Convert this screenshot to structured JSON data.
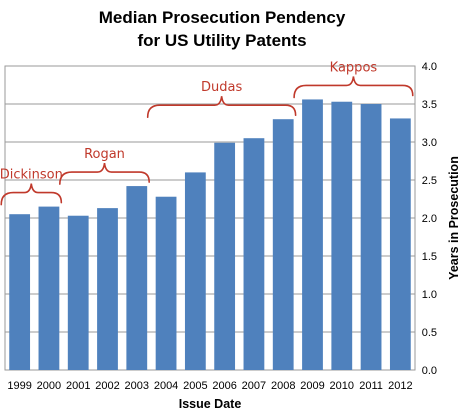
{
  "chart_data": {
    "type": "bar",
    "title_lines": [
      "Median Prosecution Pendency",
      "for US Utility Patents"
    ],
    "xlabel": "Issue Date",
    "ylabel": "Years in Prosecution",
    "categories": [
      "1999",
      "2000",
      "2001",
      "2002",
      "2003",
      "2004",
      "2005",
      "2006",
      "2007",
      "2008",
      "2009",
      "2010",
      "2011",
      "2012"
    ],
    "values": [
      2.05,
      2.15,
      2.03,
      2.13,
      2.42,
      2.28,
      2.6,
      2.99,
      3.05,
      3.3,
      3.56,
      3.53,
      3.5,
      3.31
    ],
    "ylim": [
      0.0,
      4.0
    ],
    "yticks": [
      "0.0",
      "0.5",
      "1.0",
      "1.5",
      "2.0",
      "2.5",
      "3.0",
      "3.5",
      "4.0"
    ],
    "y_axis_position": "right",
    "grid": true,
    "bar_color": "#4f81bd",
    "annotation_color": "#c0392b",
    "annotations": [
      {
        "text": "Dickinson",
        "from": "1999",
        "to": "2000"
      },
      {
        "text": "Rogan",
        "from": "2001",
        "to": "2003"
      },
      {
        "text": "Dudas",
        "from": "2004",
        "to": "2008"
      },
      {
        "text": "Kappos",
        "from": "2009",
        "to": "2012"
      }
    ]
  }
}
